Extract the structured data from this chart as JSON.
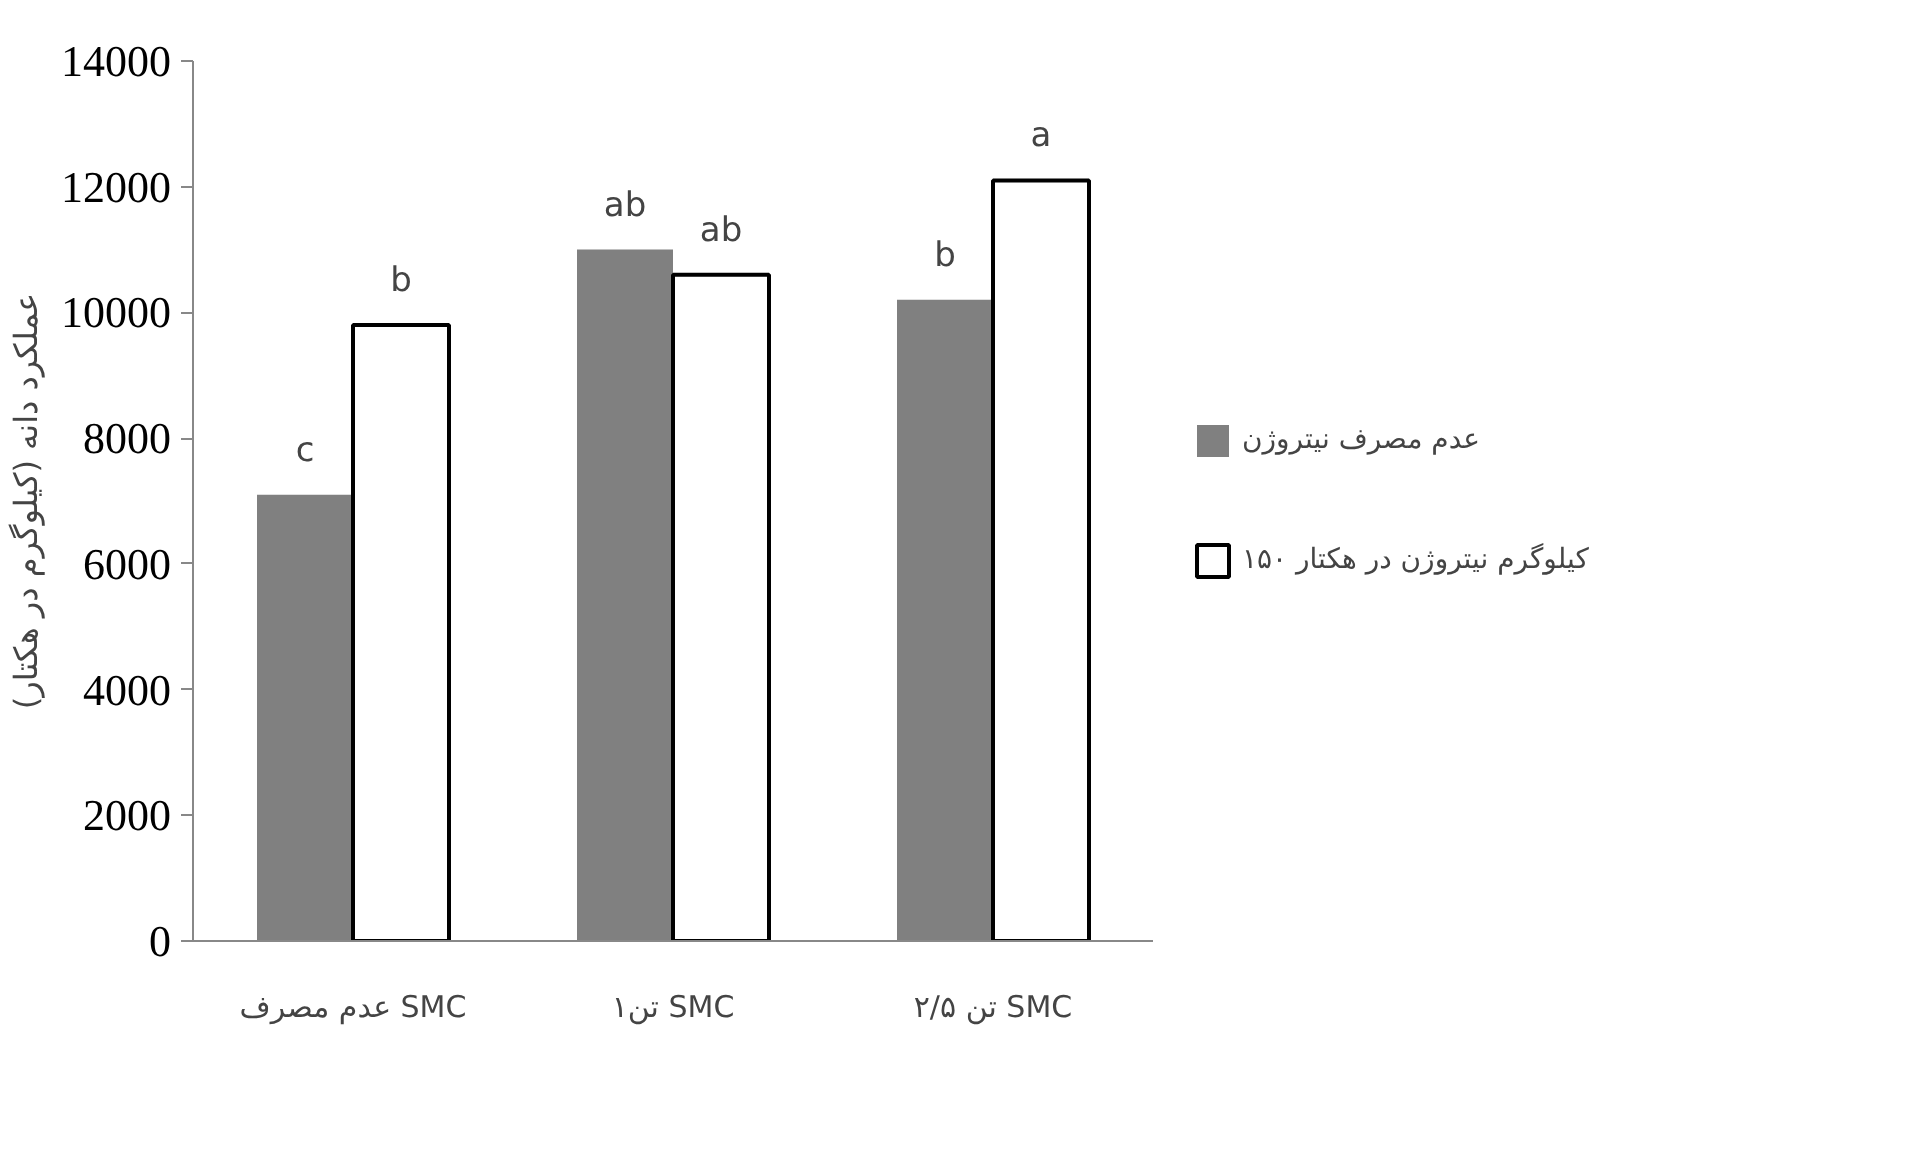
{
  "chart_data": {
    "type": "bar",
    "ylabel": "عملکرد دانه (کیلوگرم در هکتار)",
    "categories": [
      "عدم مصرف SMC",
      "۱تن SMC",
      "۲/۵ تن SMC"
    ],
    "series": [
      {
        "name": "عدم مصرف نیتروژن",
        "color": "#808080",
        "values": [
          7100,
          11000,
          10200
        ]
      },
      {
        "name": "۱۵۰ کیلوگرم نیتروژن در هکتار",
        "color": "#ffffff",
        "values": [
          9800,
          10600,
          12100
        ]
      }
    ],
    "ylim": [
      0,
      14000
    ],
    "yticks": [
      0,
      2000,
      4000,
      6000,
      8000,
      10000,
      12000,
      14000
    ],
    "annotations": [
      {
        "text": "c",
        "x": "عدم مصرف SMC",
        "y": 7100
      },
      {
        "text": "b",
        "x": "عدم مصرف SMC",
        "y": 9800
      },
      {
        "text": "ab",
        "x": "۱تن SMC",
        "y": 11000
      },
      {
        "text": "ab",
        "x": "۱تن SMC",
        "y": 10600
      },
      {
        "text": "b",
        "x": "۲/۵ تن SMC",
        "y": 10200
      },
      {
        "text": "a",
        "x": "۲/۵ تن SMC",
        "y": 12100
      }
    ],
    "grid": false,
    "legend": "right"
  }
}
